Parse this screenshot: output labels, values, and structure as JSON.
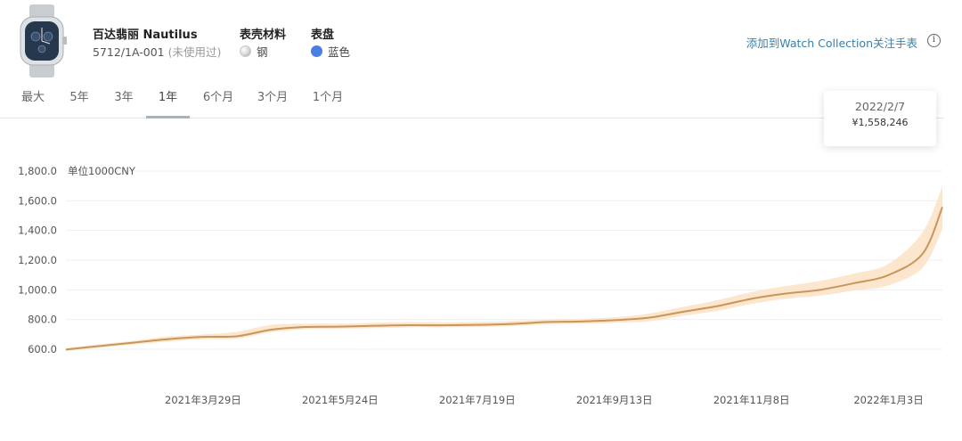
{
  "watch": {
    "title": "百达翡丽 Nautilus",
    "reference": "5712/1A-001",
    "condition": "(未使用过)",
    "case_label": "表壳材料",
    "case_value": "钢",
    "dial_label": "表盘",
    "dial_value": "蓝色",
    "dial_color": "#4a7de6",
    "add_link": "添加到Watch Collection关注手表",
    "info_icon": "ⓘ"
  },
  "tabs": [
    {
      "label": "最大",
      "active": false
    },
    {
      "label": "5年",
      "active": false
    },
    {
      "label": "3年",
      "active": false
    },
    {
      "label": "1年",
      "active": true
    },
    {
      "label": "6个月",
      "active": false
    },
    {
      "label": "3个月",
      "active": false
    },
    {
      "label": "1个月",
      "active": false
    }
  ],
  "tooltip": {
    "date": "2022/2/7",
    "value": "¥1,558,246"
  },
  "chart_data": {
    "type": "area",
    "unit_label": "单位1000CNY",
    "line_color": "#c9955a",
    "band_color": "#fbe3c5",
    "y_ticks": [
      "600.0",
      "800.0",
      "1,000.0",
      "1,200.0",
      "1,400.0",
      "1,600.0",
      "1,800.0"
    ],
    "ylim": [
      600,
      1800
    ],
    "x_tick_labels": [
      "2021年3月29日",
      "2021年5月24日",
      "2021年7月19日",
      "2021年9月13日",
      "2021年11月8日",
      "2022年1月3日"
    ],
    "x_tick_days": [
      56,
      112,
      168,
      224,
      280,
      336
    ],
    "x_range_days": [
      0,
      358
    ],
    "series": [
      {
        "x_days": [
          0,
          14,
          28,
          42,
          56,
          70,
          84,
          98,
          112,
          126,
          140,
          154,
          168,
          182,
          196,
          210,
          224,
          238,
          252,
          266,
          280,
          294,
          308,
          322,
          336,
          350,
          358
        ],
        "values": [
          598,
          622,
          645,
          668,
          683,
          688,
          732,
          750,
          752,
          758,
          762,
          761,
          764,
          770,
          783,
          787,
          796,
          812,
          852,
          890,
          940,
          975,
          1000,
          1045,
          1100,
          1245,
          1558
        ],
        "upper": [
          608,
          634,
          658,
          686,
          700,
          718,
          765,
          772,
          772,
          778,
          782,
          780,
          784,
          790,
          800,
          805,
          815,
          840,
          885,
          930,
          985,
          1025,
          1060,
          1110,
          1175,
          1390,
          1700
        ],
        "lower": [
          588,
          611,
          632,
          652,
          668,
          672,
          715,
          735,
          738,
          742,
          748,
          748,
          750,
          755,
          768,
          772,
          778,
          788,
          825,
          858,
          905,
          940,
          960,
          995,
          1030,
          1150,
          1410
        ]
      }
    ]
  }
}
